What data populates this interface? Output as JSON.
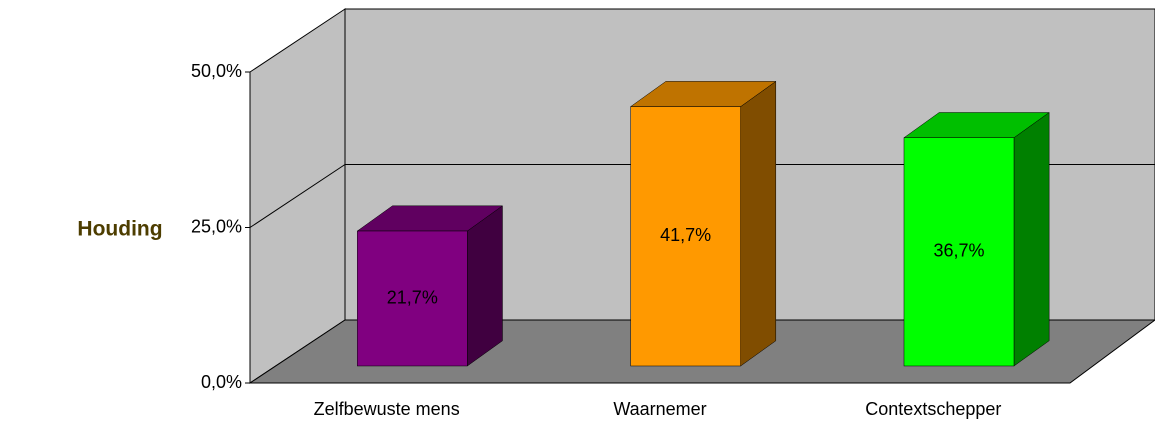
{
  "chart_data": {
    "type": "bar3d",
    "y_label": "Houding",
    "categories": [
      "Zelfbewuste mens",
      "Waarnemer",
      "Contextschepper"
    ],
    "values": [
      21.7,
      41.7,
      36.7
    ],
    "value_labels": [
      "21,7%",
      "41,7%",
      "36,7%"
    ],
    "colors": [
      "#800080",
      "#ff9900",
      "#00ff00"
    ],
    "ylim": [
      0,
      50
    ],
    "yticks": [
      {
        "value": 0,
        "label": "0,0%"
      },
      {
        "value": 25,
        "label": "25,0%"
      },
      {
        "value": 50,
        "label": "50,0%"
      }
    ],
    "grid": true
  }
}
